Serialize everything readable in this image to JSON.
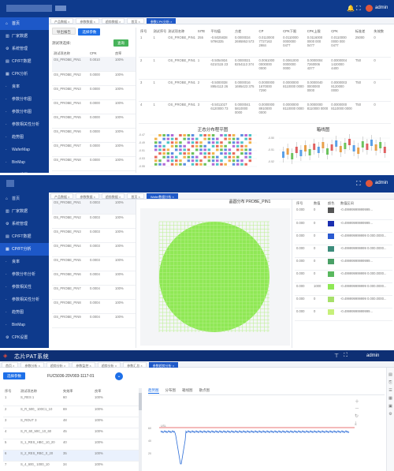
{
  "panel1": {
    "user": "admin",
    "sidebar": [
      {
        "icon": "home-icon",
        "label": "首页"
      },
      {
        "icon": "factory-icon",
        "label": "厂家数据"
      },
      {
        "icon": "settings-icon",
        "label": "系统管理"
      },
      {
        "icon": "cpt-icon",
        "label": "CP/FT数据"
      },
      {
        "icon": "chart-icon",
        "label": "CPK分析"
      },
      {
        "icon": "dot-icon",
        "label": "良率"
      },
      {
        "icon": "dot-icon",
        "label": "参数分布图"
      },
      {
        "icon": "dot-icon",
        "label": "参数分布图"
      },
      {
        "icon": "dot-icon",
        "label": "参数相关性分析"
      },
      {
        "icon": "dot-icon",
        "label": "趋势图"
      },
      {
        "icon": "dot-icon",
        "label": "WaferMap"
      },
      {
        "icon": "dot-icon",
        "label": "BinMap"
      },
      {
        "icon": "gear-icon",
        "label": "CPK设置"
      }
    ],
    "tabs": [
      "产品数据 ×",
      "参数数据 ×",
      "趋势数据 ×",
      "首页 ×",
      "参数CPK分析 ×"
    ],
    "buttons": {
      "export": "导出报告",
      "select": "选择参数",
      "query": "查询"
    },
    "filter_label": "测试项选择：",
    "list_headers": [
      "测试项名称",
      "CPK",
      "良率"
    ],
    "list_rows": [
      {
        "name": "OS_PROBE_PIN1",
        "cpk": "0.0010",
        "yield": "100%"
      },
      {
        "name": "OS_PROBE_PIN2",
        "cpk": "0.0000",
        "yield": "100%"
      },
      {
        "name": "OS_PROBE_PIN3",
        "cpk": "0.0000",
        "yield": "100%"
      },
      {
        "name": "OS_PROBE_PIN4",
        "cpk": "0.0000",
        "yield": "100%"
      },
      {
        "name": "OS_PROBE_PIN5",
        "cpk": "0.0000",
        "yield": "100%"
      },
      {
        "name": "OS_PROBE_PIN6",
        "cpk": "0.0000",
        "yield": "100%"
      },
      {
        "name": "OS_PROBE_PIN7",
        "cpk": "0.0000",
        "yield": "100%"
      },
      {
        "name": "OS_PROBE_PIN8",
        "cpk": "0.0000",
        "yield": "100%"
      }
    ],
    "table_headers": [
      "序号",
      "测试序号",
      "测试项名称",
      "SITE",
      "平均值",
      "方差",
      "CP",
      "CPK下限",
      "CPK上限",
      "CPK",
      "标准差",
      "失效数"
    ],
    "table_rows": [
      [
        "1",
        "1",
        "OS_PROBE_PIN1",
        "255",
        "-0.5025838 9796335",
        "0.0000034 2695953 573",
        "0.0110000 7727163 2984",
        "0.0110000 0000000 0477",
        "0.0116000 0000 000 0477",
        "0.0110000 0000 000 0477",
        "25000",
        "0"
      ],
      [
        "2",
        "1",
        "OS_PROBE_PIN1",
        "1",
        "-0.5054934 6210115 23",
        "0.0000021 8254113 374",
        "0.0061000 0000000 0000",
        "0.0061000 0000000 0000",
        "0.0000004 7260006 4377",
        "0.0000004 1420000 4400",
        "T50",
        "0"
      ],
      [
        "3",
        "1",
        "OS_PROBE_PIN1",
        "2",
        "-0.5000038 8954113 26",
        "0.0000016 1695423 375",
        "0.0000000 1670000 7290",
        "0.0000000 8110000 0000",
        "0.0000040 0000000 0000",
        "0.0000003 8120000 0000",
        "T50",
        "0"
      ],
      [
        "4",
        "1",
        "OS_PROBE_PIN1",
        "3",
        "-0.5011027 6120000 73",
        "0.0000041 5810000 0000",
        "0.0000000 8910000 0000",
        "0.0000000 8110000 0000",
        "0.0000000 8110000 0000",
        "0.0000000 8110000 0000",
        "T50",
        "0"
      ]
    ],
    "chart1_title": "正态分布程平图",
    "chart2_title": "箱线图",
    "chart1_yticks": [
      "-0.47",
      "-0.49",
      "-0.51",
      "-0.53",
      "-0.55"
    ],
    "chart2_yticks": [
      "-0.50",
      "-0.51",
      "-0.52"
    ]
  },
  "panel2": {
    "user": "admin",
    "sidebar": [
      {
        "icon": "home-icon",
        "label": "首页"
      },
      {
        "icon": "factory-icon",
        "label": "厂家数据"
      },
      {
        "icon": "settings-icon",
        "label": "系统管理"
      },
      {
        "icon": "cpt-icon",
        "label": "CP/FT数据"
      },
      {
        "icon": "chart-icon",
        "label": "CP/FT分析"
      },
      {
        "icon": "dot-icon",
        "label": "良率"
      },
      {
        "icon": "dot-icon",
        "label": "参数分布分析"
      },
      {
        "icon": "dot-icon",
        "label": "参数相关性"
      },
      {
        "icon": "dot-icon",
        "label": "参数相关性分析"
      },
      {
        "icon": "dot-icon",
        "label": "趋势图"
      },
      {
        "icon": "dot-icon",
        "label": "BinMap"
      },
      {
        "icon": "gear-icon",
        "label": "CPK设置"
      }
    ],
    "tabs": [
      "产品数据 ×",
      "参数数据 ×",
      "趋势数据 ×",
      "首页 ×",
      "Wafer数据分析 ×"
    ],
    "list_rows": [
      {
        "name": "OS_PROBE_PIN1",
        "cpk": "0.0003",
        "yield": "100%"
      },
      {
        "name": "OS_PROBE_PIN2",
        "cpk": "0.0003",
        "yield": "100%"
      },
      {
        "name": "OS_PROBE_PIN3",
        "cpk": "0.0003",
        "yield": "100%"
      },
      {
        "name": "OS_PROBE_PIN4",
        "cpk": "0.0003",
        "yield": "100%"
      },
      {
        "name": "OS_PROBE_PIN5",
        "cpk": "0.0003",
        "yield": "100%"
      },
      {
        "name": "OS_PROBE_PIN6",
        "cpk": "0.0004",
        "yield": "100%"
      },
      {
        "name": "OS_PROBE_PIN7",
        "cpk": "0.0004",
        "yield": "100%"
      },
      {
        "name": "OS_PROBE_PIN8",
        "cpk": "0.0004",
        "yield": "100%"
      },
      {
        "name": "OS_PROBE_PIN9",
        "cpk": "0.0004",
        "yield": "100%"
      }
    ],
    "map_title": "晶圆分布 PROBE_PIN1",
    "legend_headers": [
      "序号",
      "数值",
      "颜色",
      "数值区间"
    ],
    "legend_rows": [
      {
        "idx": "0.000",
        "val": "0",
        "color": "#555555",
        "range": "-0.49999999999999..."
      },
      {
        "idx": "0.000",
        "val": "0",
        "color": "#1b2fb0",
        "range": "-0.49999999999999..."
      },
      {
        "idx": "0.000",
        "val": "0",
        "color": "#2a5ad0",
        "range": "-0.499999999999 0.000.0000..."
      },
      {
        "idx": "0.000",
        "val": "0",
        "color": "#3c8c7c",
        "range": "-0.499999999999 0.000.0000..."
      },
      {
        "idx": "0.000",
        "val": "0",
        "color": "#4aa066",
        "range": "-0.49999999999999..."
      },
      {
        "idx": "0.000",
        "val": "0",
        "color": "#59b85e",
        "range": "-0.499999999999 0.000.0000..."
      },
      {
        "idx": "0.000",
        "val": "1000",
        "color": "#8fe855",
        "range": "-0.499999999999 0.000.0000..."
      },
      {
        "idx": "0.000",
        "val": "0",
        "color": "#a7e06a",
        "range": "-0.499999999999 0.000.0000..."
      },
      {
        "idx": "0.000",
        "val": "0",
        "color": "#c7f07a",
        "range": "-0.49999999999999..."
      }
    ]
  },
  "panel3": {
    "app_title": "芯片PAT系统",
    "user": "admin",
    "tabs": [
      "首页 ×",
      "参数分析 ×",
      "趋势分析 ×",
      "参数监控 ×",
      "趋势分析 ×",
      "参数汇总 ×",
      "参数趋势分析 ×"
    ],
    "button": "选择参数",
    "wafer_id": "FUC5036-20V003-1117-01",
    "list_headers": [
      "序号",
      "测试项名称",
      "失效率",
      "良率"
    ],
    "list_rows": [
      {
        "idx": "1",
        "name": "S_RES 1",
        "fail": "60",
        "yield": "100%"
      },
      {
        "idx": "2",
        "name": "S_R_500_ 100C1_10",
        "fail": "69",
        "yield": "100%"
      },
      {
        "idx": "3",
        "name": "S_ROUT 3",
        "fail": "48",
        "yield": "100%"
      },
      {
        "idx": "4",
        "name": "S_R_60_MIC_10_60",
        "fail": "45",
        "yield": "100%"
      },
      {
        "idx": "5",
        "name": "S_1_RES_HBC_10_20",
        "fail": "40",
        "yield": "100%"
      },
      {
        "idx": "6",
        "name": "S_2_RES_RBC_0_20",
        "fail": "35",
        "yield": "100%"
      },
      {
        "idx": "7",
        "name": "S_4_600_ 1000_10",
        "fail": "34",
        "yield": "100%"
      }
    ],
    "subtabs": [
      "趋势图",
      "分布图",
      "箱线图",
      "散点图"
    ],
    "chart_yticks": [
      "60",
      "40",
      "20"
    ],
    "limit_label": "USL"
  }
}
